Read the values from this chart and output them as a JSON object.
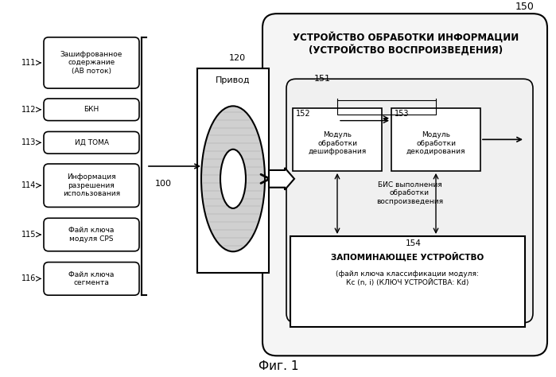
{
  "title": "УСТРОЙСТВО ОБРАБОТКИ ИНФОРМАЦИИ\n(УСТРОЙСТВО ВОСПРОИЗВЕДЕНИЯ)",
  "label_150": "150",
  "label_100": "100",
  "label_120": "120",
  "label_151": "151",
  "label_152": "152",
  "label_153": "153",
  "label_154": "154",
  "label_111": "111",
  "label_112": "112",
  "label_113": "113",
  "label_114": "114",
  "label_115": "115",
  "label_116": "116",
  "drive_label": "Привод",
  "box111_text": "Зашифрованное\nсодержание\n(АВ поток)",
  "box112_text": "БКН",
  "box113_text": "ИД ТОМА",
  "box114_text": "Информация\nразрешения\nиспользования",
  "box115_text": "Файл ключа\nмодуля CPS",
  "box116_text": "Файл ключа\nсегмента",
  "box152_text": "Модуль\nобработки\nдешифрования",
  "box153_text": "Модуль\nобработки\nдекодирования",
  "bis_text": "БИС выполнения\nобработки\nвоспроизведения",
  "memory_title": "ЗАПОМИНАЮЩЕЕ УСТРОЙСТВО",
  "memory_text": "(файл ключа классификации модуля:\nКс (n, i) (КЛЮЧ УСТРОЙСТВА: Kd)",
  "fig_label": "Фиг. 1",
  "bg_color": "#ffffff",
  "box_color": "#ffffff",
  "box_edge": "#000000",
  "text_color": "#000000"
}
